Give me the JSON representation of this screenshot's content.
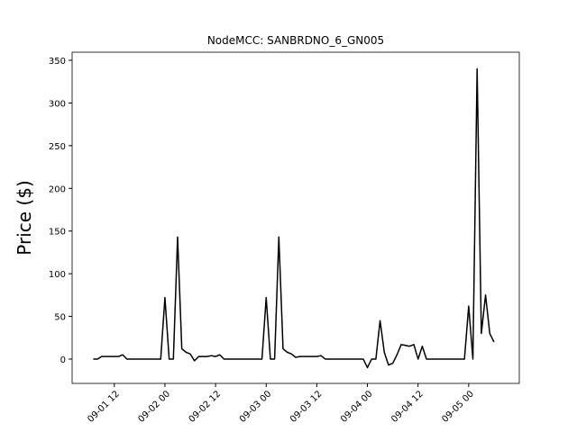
{
  "chart_data": {
    "type": "line",
    "title": "NodeMCC: SANBRDNO_6_GN005",
    "y_label": "Price ($)",
    "x": [
      "09-01 07",
      "09-01 08",
      "09-01 09",
      "09-01 10",
      "09-01 11",
      "09-01 12",
      "09-01 13",
      "09-01 14",
      "09-01 15",
      "09-01 16",
      "09-01 17",
      "09-01 18",
      "09-01 19",
      "09-01 20",
      "09-01 21",
      "09-01 22",
      "09-01 23",
      "09-02 00",
      "09-02 01",
      "09-02 02",
      "09-02 03",
      "09-02 04",
      "09-02 05",
      "09-02 06",
      "09-02 07",
      "09-02 08",
      "09-02 09",
      "09-02 10",
      "09-02 11",
      "09-02 12",
      "09-02 13",
      "09-02 14",
      "09-02 15",
      "09-02 16",
      "09-02 17",
      "09-02 18",
      "09-02 19",
      "09-02 20",
      "09-02 21",
      "09-02 22",
      "09-02 23",
      "09-03 00",
      "09-03 01",
      "09-03 02",
      "09-03 03",
      "09-03 04",
      "09-03 05",
      "09-03 06",
      "09-03 07",
      "09-03 08",
      "09-03 09",
      "09-03 10",
      "09-03 11",
      "09-03 12",
      "09-03 13",
      "09-03 14",
      "09-03 15",
      "09-03 16",
      "09-03 17",
      "09-03 18",
      "09-03 19",
      "09-03 20",
      "09-03 21",
      "09-03 22",
      "09-03 23",
      "09-04 00",
      "09-04 01",
      "09-04 02",
      "09-04 03",
      "09-04 04",
      "09-04 05",
      "09-04 06",
      "09-04 07",
      "09-04 08",
      "09-04 09",
      "09-04 10",
      "09-04 11",
      "09-04 12",
      "09-04 13",
      "09-04 14",
      "09-04 15",
      "09-04 16",
      "09-04 17",
      "09-04 18",
      "09-04 19",
      "09-04 20",
      "09-04 21",
      "09-04 22",
      "09-04 23",
      "09-05 00",
      "09-05 01",
      "09-05 02",
      "09-05 03",
      "09-05 04",
      "09-05 05",
      "09-05 06"
    ],
    "series": [
      {
        "name": "Price",
        "color": "#000000",
        "values": [
          0,
          0,
          3,
          3,
          3,
          3,
          3,
          5,
          0,
          0,
          0,
          0,
          0,
          0,
          0,
          0,
          0,
          72,
          0,
          0,
          143,
          12,
          8,
          6,
          -2,
          3,
          3,
          3,
          4,
          3,
          5,
          0,
          0,
          0,
          0,
          0,
          0,
          0,
          0,
          0,
          0,
          72,
          0,
          0,
          143,
          12,
          8,
          6,
          2,
          3,
          3,
          3,
          3,
          3,
          4,
          0,
          0,
          0,
          0,
          0,
          0,
          0,
          0,
          0,
          0,
          -10,
          0,
          0,
          45,
          8,
          -7,
          -5,
          5,
          17,
          16,
          15,
          17,
          0,
          15,
          0,
          0,
          0,
          0,
          0,
          0,
          0,
          0,
          0,
          0,
          62,
          0,
          340,
          30,
          75,
          30,
          20
        ]
      }
    ],
    "xlim": [
      "09-01 02",
      "09-05 12"
    ],
    "xticks": [
      "09-01 12",
      "09-02 00",
      "09-02 12",
      "09-03 00",
      "09-03 12",
      "09-04 00",
      "09-04 12",
      "09-05 00"
    ],
    "ylim": [
      -28.5,
      359.5
    ],
    "yticks": [
      0,
      50,
      100,
      150,
      200,
      250,
      300,
      350
    ],
    "grid": false
  }
}
